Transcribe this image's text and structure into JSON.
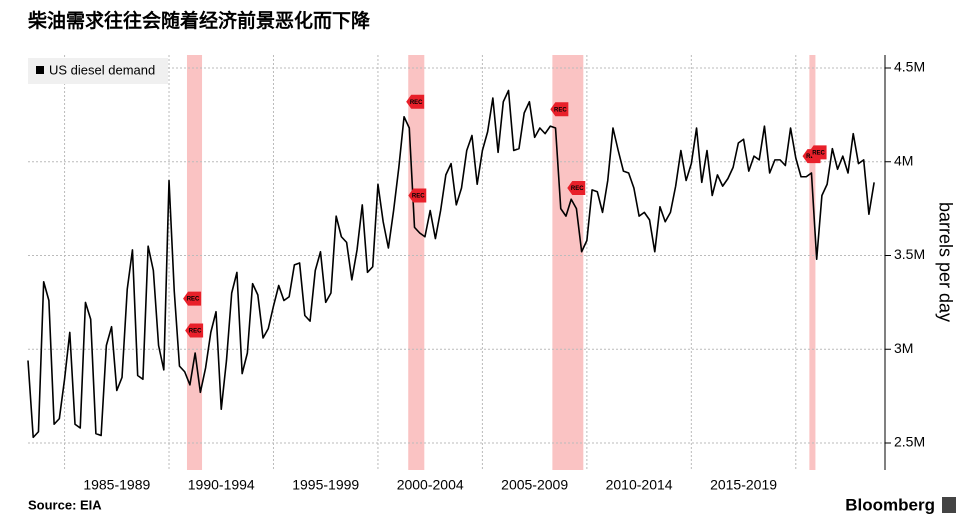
{
  "chart_data": {
    "type": "line",
    "title": "柴油需求往往会随着经济前景恶化而下降",
    "source": "Source: EIA",
    "brand": "Bloomberg",
    "y_axis_label": "barrels per day",
    "series": [
      {
        "name": "US diesel demand",
        "color": "#000000",
        "values": [
          2940000,
          2530000,
          2560000,
          3360000,
          3260000,
          2600000,
          2630000,
          2840000,
          3090000,
          2600000,
          2580000,
          3250000,
          3160000,
          2550000,
          2540000,
          3020000,
          3120000,
          2780000,
          2850000,
          3320000,
          3530000,
          2860000,
          2840000,
          3550000,
          3420000,
          3020000,
          2890000,
          3900000,
          3310000,
          2910000,
          2880000,
          2810000,
          2980000,
          2770000,
          2900000,
          3090000,
          3200000,
          2680000,
          2940000,
          3300000,
          3410000,
          2870000,
          2980000,
          3350000,
          3290000,
          3060000,
          3110000,
          3230000,
          3340000,
          3260000,
          3280000,
          3450000,
          3460000,
          3180000,
          3150000,
          3420000,
          3520000,
          3250000,
          3300000,
          3710000,
          3600000,
          3570000,
          3370000,
          3530000,
          3770000,
          3410000,
          3440000,
          3880000,
          3680000,
          3540000,
          3740000,
          3970000,
          4240000,
          4180000,
          3650000,
          3620000,
          3600000,
          3740000,
          3590000,
          3740000,
          3930000,
          3990000,
          3770000,
          3860000,
          4060000,
          4140000,
          3880000,
          4060000,
          4160000,
          4340000,
          4050000,
          4320000,
          4380000,
          4060000,
          4070000,
          4260000,
          4320000,
          4130000,
          4180000,
          4150000,
          4190000,
          4180000,
          3750000,
          3710000,
          3800000,
          3750000,
          3520000,
          3580000,
          3850000,
          3840000,
          3730000,
          3900000,
          4180000,
          4060000,
          3950000,
          3940000,
          3860000,
          3710000,
          3730000,
          3690000,
          3520000,
          3760000,
          3680000,
          3730000,
          3870000,
          4060000,
          3900000,
          3990000,
          4180000,
          3890000,
          4060000,
          3820000,
          3930000,
          3870000,
          3910000,
          3970000,
          4100000,
          4120000,
          3950000,
          4030000,
          4010000,
          4190000,
          3940000,
          4010000,
          4010000,
          3980000,
          4180000,
          4020000,
          3920000,
          3920000,
          3940000,
          3480000,
          3820000,
          3880000,
          4070000,
          3960000,
          4030000,
          3940000,
          4150000,
          3990000,
          4010000,
          3720000,
          3890000
        ]
      }
    ],
    "x": [
      1983.25,
      1983.5,
      1983.75,
      1984,
      1984.25,
      1984.5,
      1984.75,
      1985,
      1985.25,
      1985.5,
      1985.75,
      1986,
      1986.25,
      1986.5,
      1986.75,
      1987,
      1987.25,
      1987.5,
      1987.75,
      1988,
      1988.25,
      1988.5,
      1988.75,
      1989,
      1989.25,
      1989.5,
      1989.75,
      1990,
      1990.25,
      1990.5,
      1990.75,
      1991,
      1991.25,
      1991.5,
      1991.75,
      1992,
      1992.25,
      1992.5,
      1992.75,
      1993,
      1993.25,
      1993.5,
      1993.75,
      1994,
      1994.25,
      1994.5,
      1994.75,
      1995,
      1995.25,
      1995.5,
      1995.75,
      1996,
      1996.25,
      1996.5,
      1996.75,
      1997,
      1997.25,
      1997.5,
      1997.75,
      1998,
      1998.25,
      1998.5,
      1998.75,
      1999,
      1999.25,
      1999.5,
      1999.75,
      2000,
      2000.25,
      2000.5,
      2000.75,
      2001,
      2001.25,
      2001.5,
      2001.75,
      2002,
      2002.25,
      2002.5,
      2002.75,
      2003,
      2003.25,
      2003.5,
      2003.75,
      2004,
      2004.25,
      2004.5,
      2004.75,
      2005,
      2005.25,
      2005.5,
      2005.75,
      2006,
      2006.25,
      2006.5,
      2006.75,
      2007,
      2007.25,
      2007.5,
      2007.75,
      2008,
      2008.25,
      2008.5,
      2008.75,
      2009,
      2009.25,
      2009.5,
      2009.75,
      2010,
      2010.25,
      2010.5,
      2010.75,
      2011,
      2011.25,
      2011.5,
      2011.75,
      2012,
      2012.25,
      2012.5,
      2012.75,
      2013,
      2013.25,
      2013.5,
      2013.75,
      2014,
      2014.25,
      2014.5,
      2014.75,
      2015,
      2015.25,
      2015.5,
      2015.75,
      2016,
      2016.25,
      2016.5,
      2016.75,
      2017,
      2017.25,
      2017.5,
      2017.75,
      2018,
      2018.25,
      2018.5,
      2018.75,
      2019,
      2019.25,
      2019.5,
      2019.75,
      2020,
      2020.25,
      2020.5,
      2020.75,
      2021,
      2021.25,
      2021.5,
      2021.75,
      2022,
      2022.25,
      2022.5,
      2022.75,
      2023,
      2023.25,
      2023.5,
      2023.75
    ],
    "xlim": [
      1983.25,
      2024.27
    ],
    "xticks": [
      {
        "value": 1987.5,
        "label": "1985-1989"
      },
      {
        "value": 1992.5,
        "label": "1990-1994"
      },
      {
        "value": 1997.5,
        "label": "1995-1999"
      },
      {
        "value": 2002.5,
        "label": "2000-2004"
      },
      {
        "value": 2007.5,
        "label": "2005-2009"
      },
      {
        "value": 2012.5,
        "label": "2010-2014"
      },
      {
        "value": 2017.5,
        "label": "2015-2019"
      }
    ],
    "xgrid": [
      1985,
      1990,
      1995,
      2000,
      2005,
      2010,
      2015,
      2020
    ],
    "ylim": [
      2356000,
      4596000
    ],
    "yticks": [
      {
        "value": 2500000,
        "label": "2.5M"
      },
      {
        "value": 3000000,
        "label": "3M"
      },
      {
        "value": 3500000,
        "label": "3.5M"
      },
      {
        "value": 4000000,
        "label": "4M"
      },
      {
        "value": 4500000,
        "label": "4.5M"
      }
    ],
    "grid": true,
    "legend": "top-left",
    "recessions": [
      {
        "start": 1990.86,
        "end": 1991.58
      },
      {
        "start": 2001.45,
        "end": 2002.22
      },
      {
        "start": 2008.35,
        "end": 2009.83
      },
      {
        "start": 2020.65,
        "end": 2020.94
      }
    ],
    "recession_color": "#f9b9b9",
    "markers": [
      {
        "x": 1991.15,
        "value": 3270000,
        "label": "REC"
      },
      {
        "x": 1991.25,
        "value": 3100000,
        "label": "REC"
      },
      {
        "x": 2001.83,
        "value": 4320000,
        "label": "REC"
      },
      {
        "x": 2001.93,
        "value": 3820000,
        "label": "REC"
      },
      {
        "x": 2008.73,
        "value": 4280000,
        "label": "REC"
      },
      {
        "x": 2009.54,
        "value": 3860000,
        "label": "REC"
      },
      {
        "x": 2020.8,
        "value": 4030000,
        "label": "REC"
      },
      {
        "x": 2021.09,
        "value": 4050000,
        "label": "REC"
      }
    ]
  }
}
